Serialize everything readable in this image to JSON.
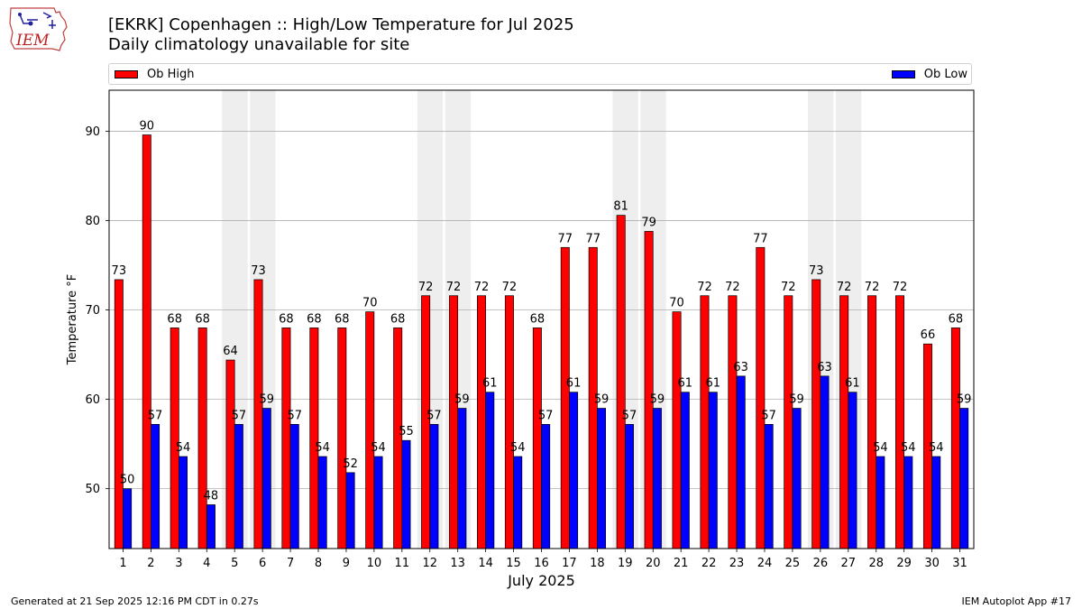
{
  "header": {
    "title_line1": "[EKRK] Copenhagen :: High/Low Temperature for Jul 2025",
    "title_line2": "Daily climatology unavailable for site",
    "logo_text": "IEM"
  },
  "legend": {
    "high_label": "Ob High",
    "low_label": "Ob Low"
  },
  "footer": {
    "generated": "Generated at 21 Sep 2025 12:16 PM CDT in 0.27s",
    "app": "IEM Autoplot App #17"
  },
  "colors": {
    "high": "#ff0000",
    "low": "#0000ff",
    "weekend_shade": "#eeeeee",
    "grid": "#b0b0b0"
  },
  "chart_data": {
    "type": "bar",
    "title": "[EKRK] Copenhagen :: High/Low Temperature for Jul 2025",
    "subtitle": "Daily climatology unavailable for site",
    "xlabel": "July 2025",
    "ylabel": "Temperature °F",
    "ylim": [
      43.3,
      94.6
    ],
    "yticks": [
      50,
      60,
      70,
      80,
      90
    ],
    "grid": true,
    "legend_position": "top",
    "categories": [
      "1",
      "2",
      "3",
      "4",
      "5",
      "6",
      "7",
      "8",
      "9",
      "10",
      "11",
      "12",
      "13",
      "14",
      "15",
      "16",
      "17",
      "18",
      "19",
      "20",
      "21",
      "22",
      "23",
      "24",
      "25",
      "26",
      "27",
      "28",
      "29",
      "30",
      "31"
    ],
    "series": [
      {
        "name": "Ob High",
        "values": [
          73.4,
          89.6,
          68,
          68,
          64.4,
          73.4,
          68,
          68,
          68,
          69.8,
          68,
          71.6,
          71.6,
          71.6,
          71.6,
          68,
          77,
          77,
          80.6,
          78.8,
          69.8,
          71.6,
          71.6,
          77,
          71.6,
          73.4,
          71.6,
          71.6,
          71.6,
          66.2,
          68
        ],
        "labels": [
          "73",
          "90",
          "68",
          "68",
          "64",
          "73",
          "68",
          "68",
          "68",
          "70",
          "68",
          "72",
          "72",
          "72",
          "72",
          "68",
          "77",
          "77",
          "81",
          "79",
          "70",
          "72",
          "72",
          "77",
          "72",
          "73",
          "72",
          "72",
          "72",
          "66",
          "68"
        ]
      },
      {
        "name": "Ob Low",
        "values": [
          50,
          57.2,
          53.6,
          48.2,
          57.2,
          59,
          57.2,
          53.6,
          51.8,
          53.6,
          55.4,
          57.2,
          59,
          60.8,
          53.6,
          57.2,
          60.8,
          59,
          57.2,
          59,
          60.8,
          60.8,
          62.6,
          57.2,
          59,
          62.6,
          60.8,
          53.6,
          53.6,
          53.6,
          59
        ],
        "labels": [
          "50",
          "57",
          "54",
          "48",
          "57",
          "59",
          "57",
          "54",
          "52",
          "54",
          "55",
          "57",
          "59",
          "61",
          "54",
          "57",
          "61",
          "59",
          "57",
          "59",
          "61",
          "61",
          "63",
          "57",
          "59",
          "63",
          "61",
          "54",
          "54",
          "54",
          "59"
        ]
      }
    ],
    "shaded_weekend_days": [
      5,
      6,
      12,
      13,
      19,
      20,
      26,
      27
    ]
  }
}
